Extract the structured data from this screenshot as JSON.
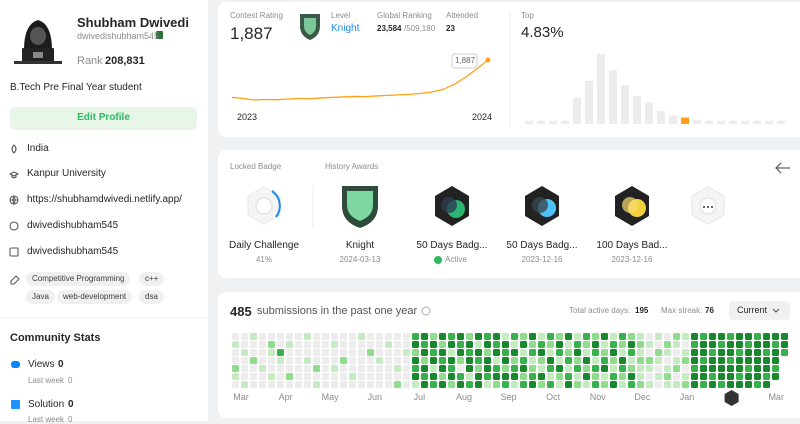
{
  "profile": {
    "name": "Shubham Dwivedi",
    "username": "dwivedishubham545",
    "rank_label": "Rank",
    "rank": "208,831",
    "bio": "B.Tech Pre Final Year student",
    "edit_button": "Edit Profile",
    "location": "India",
    "school": "Kanpur University",
    "website": "https://shubhamdwivedi.netlify.app/",
    "github": "dwivedishubham545",
    "linkedin": "dwivedishubham545",
    "skills": [
      "Competitive Programming",
      "c++",
      "Java",
      "web-development",
      "dsa"
    ]
  },
  "community_stats": {
    "title": "Community Stats",
    "items": [
      {
        "label": "Views",
        "value": 0,
        "sub_label": "Last week",
        "sub_value": 0
      },
      {
        "label": "Solution",
        "value": 0,
        "sub_label": "Last week",
        "sub_value": 0
      }
    ]
  },
  "contest": {
    "rating_label": "Contest Rating",
    "rating": "1,887",
    "level_label": "Level",
    "level": "Knight",
    "global_ranking_label": "Global Ranking",
    "global_rank": "23,584",
    "global_total": "/509,180",
    "attended_label": "Attended",
    "attended": 23,
    "year_start": "2023",
    "year_end": "2024",
    "tooltip": "1,887",
    "rating_history": [
      1520,
      1510,
      1495,
      1500,
      1498,
      1505,
      1510,
      1508,
      1515,
      1520,
      1525,
      1530,
      1528,
      1535,
      1540,
      1545,
      1550,
      1560,
      1575,
      1600,
      1650,
      1720,
      1800,
      1887
    ],
    "top_label": "Top",
    "top_percent": "4.83%",
    "top_histogram": [
      3,
      3,
      3,
      3,
      24,
      40,
      65,
      50,
      36,
      26,
      20,
      12,
      8,
      6,
      4,
      3,
      3,
      3,
      3,
      3,
      3,
      3
    ],
    "top_highlight": 13
  },
  "badges": {
    "locked_label": "Locked Badge",
    "history_label": "History Awards",
    "locked": {
      "name": "Daily Challenge",
      "progress": "41%"
    },
    "items": [
      {
        "name": "Knight",
        "date": "2024-03-13"
      },
      {
        "name": "50 Days Badg...",
        "status": "Active"
      },
      {
        "name": "50 Days Badg...",
        "date": "2023-12-16"
      },
      {
        "name": "100 Days Bad...",
        "date": "2023-12-16"
      }
    ]
  },
  "submissions": {
    "count": 485,
    "text": "submissions in the past one year",
    "total_active_label": "Total active days:",
    "total_active": 195,
    "max_streak_label": "Max streak:",
    "max_streak": 76,
    "selector": "Current",
    "months": [
      "Mar",
      "Apr",
      "May",
      "Jun",
      "Jul",
      "Aug",
      "Sep",
      "Oct",
      "Nov",
      "Dec",
      "Jan",
      null,
      "Mar"
    ],
    "weeks": [
      [
        0,
        1,
        0,
        0,
        2,
        1,
        0
      ],
      [
        0,
        0,
        1,
        0,
        0,
        0,
        1
      ],
      [
        1,
        0,
        0,
        2,
        0,
        0,
        0
      ],
      [
        0,
        0,
        0,
        0,
        1,
        0,
        0
      ],
      [
        0,
        2,
        1,
        0,
        0,
        1,
        0
      ],
      [
        0,
        0,
        3,
        1,
        0,
        0,
        0
      ],
      [
        0,
        1,
        0,
        0,
        0,
        2,
        0
      ],
      [
        0,
        0,
        0,
        0,
        0,
        0,
        0
      ],
      [
        1,
        0,
        0,
        1,
        0,
        0,
        0
      ],
      [
        0,
        0,
        0,
        0,
        2,
        0,
        1
      ],
      [
        0,
        0,
        0,
        0,
        0,
        0,
        0
      ],
      [
        0,
        1,
        0,
        0,
        1,
        0,
        0
      ],
      [
        0,
        0,
        0,
        2,
        0,
        0,
        0
      ],
      [
        0,
        0,
        0,
        0,
        0,
        1,
        0
      ],
      [
        1,
        0,
        0,
        0,
        0,
        0,
        0
      ],
      [
        0,
        0,
        2,
        0,
        0,
        0,
        0
      ],
      [
        0,
        0,
        0,
        1,
        0,
        0,
        0
      ],
      [
        0,
        1,
        0,
        0,
        0,
        0,
        0
      ],
      [
        0,
        0,
        0,
        0,
        1,
        0,
        2
      ],
      [
        0,
        0,
        1,
        0,
        0,
        0,
        0
      ],
      [
        3,
        4,
        2,
        4,
        3,
        4,
        1
      ],
      [
        4,
        3,
        4,
        2,
        4,
        3,
        4
      ],
      [
        2,
        4,
        3,
        4,
        1,
        4,
        3
      ],
      [
        4,
        2,
        4,
        3,
        4,
        2,
        4
      ],
      [
        3,
        4,
        1,
        4,
        3,
        4,
        2
      ],
      [
        4,
        3,
        4,
        2,
        0,
        3,
        4
      ],
      [
        2,
        4,
        3,
        4,
        4,
        1,
        3
      ],
      [
        4,
        1,
        4,
        3,
        2,
        4,
        4
      ],
      [
        3,
        4,
        2,
        4,
        4,
        3,
        1
      ],
      [
        4,
        3,
        4,
        1,
        3,
        4,
        2
      ],
      [
        1,
        4,
        3,
        4,
        2,
        4,
        3
      ],
      [
        3,
        1,
        4,
        2,
        3,
        4,
        1
      ],
      [
        2,
        4,
        1,
        3,
        4,
        2,
        3
      ],
      [
        4,
        2,
        3,
        1,
        2,
        3,
        4
      ],
      [
        1,
        3,
        4,
        2,
        1,
        4,
        2
      ],
      [
        3,
        2,
        1,
        4,
        3,
        1,
        3
      ],
      [
        2,
        4,
        3,
        1,
        4,
        2,
        1
      ],
      [
        4,
        1,
        2,
        3,
        1,
        3,
        4
      ],
      [
        1,
        3,
        4,
        2,
        3,
        1,
        2
      ],
      [
        3,
        2,
        1,
        4,
        2,
        4,
        1
      ],
      [
        2,
        4,
        3,
        1,
        3,
        2,
        3
      ],
      [
        4,
        1,
        2,
        3,
        4,
        1,
        2
      ],
      [
        1,
        3,
        4,
        2,
        1,
        3,
        4
      ],
      [
        3,
        2,
        1,
        4,
        3,
        2,
        1
      ],
      [
        2,
        4,
        3,
        1,
        2,
        4,
        3
      ],
      [
        1,
        2,
        1,
        2,
        1,
        1,
        2
      ],
      [
        0,
        1,
        0,
        2,
        1,
        0,
        1
      ],
      [
        1,
        0,
        2,
        1,
        0,
        1,
        0
      ],
      [
        0,
        2,
        1,
        0,
        1,
        2,
        1
      ],
      [
        2,
        1,
        0,
        1,
        2,
        0,
        1
      ],
      [
        1,
        0,
        1,
        2,
        0,
        1,
        2
      ],
      [
        4,
        3,
        4,
        4,
        3,
        4,
        4
      ],
      [
        3,
        4,
        4,
        3,
        4,
        4,
        3
      ],
      [
        4,
        4,
        3,
        4,
        4,
        3,
        4
      ],
      [
        4,
        3,
        4,
        4,
        4,
        4,
        3
      ],
      [
        3,
        4,
        4,
        3,
        4,
        4,
        4
      ],
      [
        4,
        4,
        3,
        4,
        4,
        3,
        4
      ],
      [
        4,
        3,
        4,
        4,
        3,
        4,
        4
      ],
      [
        3,
        4,
        4,
        4,
        4,
        4,
        3
      ],
      [
        4,
        4,
        3,
        4,
        4,
        3,
        4
      ],
      [
        4,
        3,
        4,
        4,
        3,
        4
      ],
      [
        4,
        4,
        3
      ]
    ]
  }
}
